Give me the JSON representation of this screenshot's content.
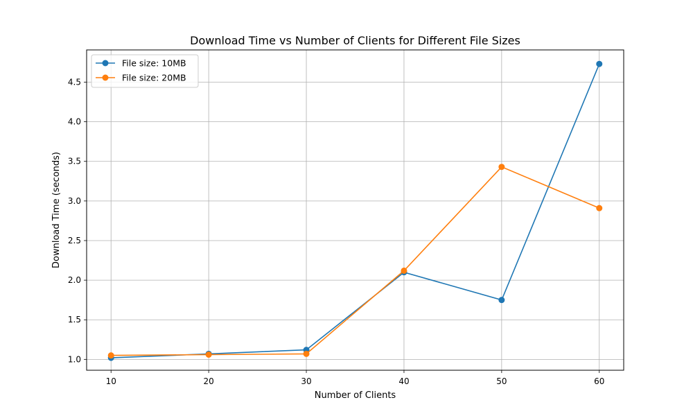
{
  "chart_data": {
    "type": "line",
    "title": "Download Time vs Number of Clients for Different File Sizes",
    "xlabel": "Number of Clients",
    "ylabel": "Download Time (seconds)",
    "x": [
      10,
      20,
      30,
      40,
      50,
      60
    ],
    "xlim": [
      7.5,
      62.5
    ],
    "ylim": [
      0.863,
      4.907
    ],
    "xticks": [
      10,
      20,
      30,
      40,
      50,
      60
    ],
    "xtick_labels": [
      "10",
      "20",
      "30",
      "40",
      "50",
      "60"
    ],
    "yticks": [
      1.0,
      1.5,
      2.0,
      2.5,
      3.0,
      3.5,
      4.0,
      4.5
    ],
    "ytick_labels": [
      "1.0",
      "1.5",
      "2.0",
      "2.5",
      "3.0",
      "3.5",
      "4.0",
      "4.5"
    ],
    "grid": true,
    "legend_position": "top-left",
    "series": [
      {
        "name": "File size: 10MB",
        "color": "#1f77b4",
        "marker": "circle",
        "values": [
          1.02,
          1.07,
          1.12,
          2.1,
          1.75,
          4.73
        ]
      },
      {
        "name": "File size: 20MB",
        "color": "#ff7f0e",
        "marker": "circle",
        "values": [
          1.05,
          1.06,
          1.07,
          2.12,
          3.43,
          2.91
        ]
      }
    ]
  }
}
